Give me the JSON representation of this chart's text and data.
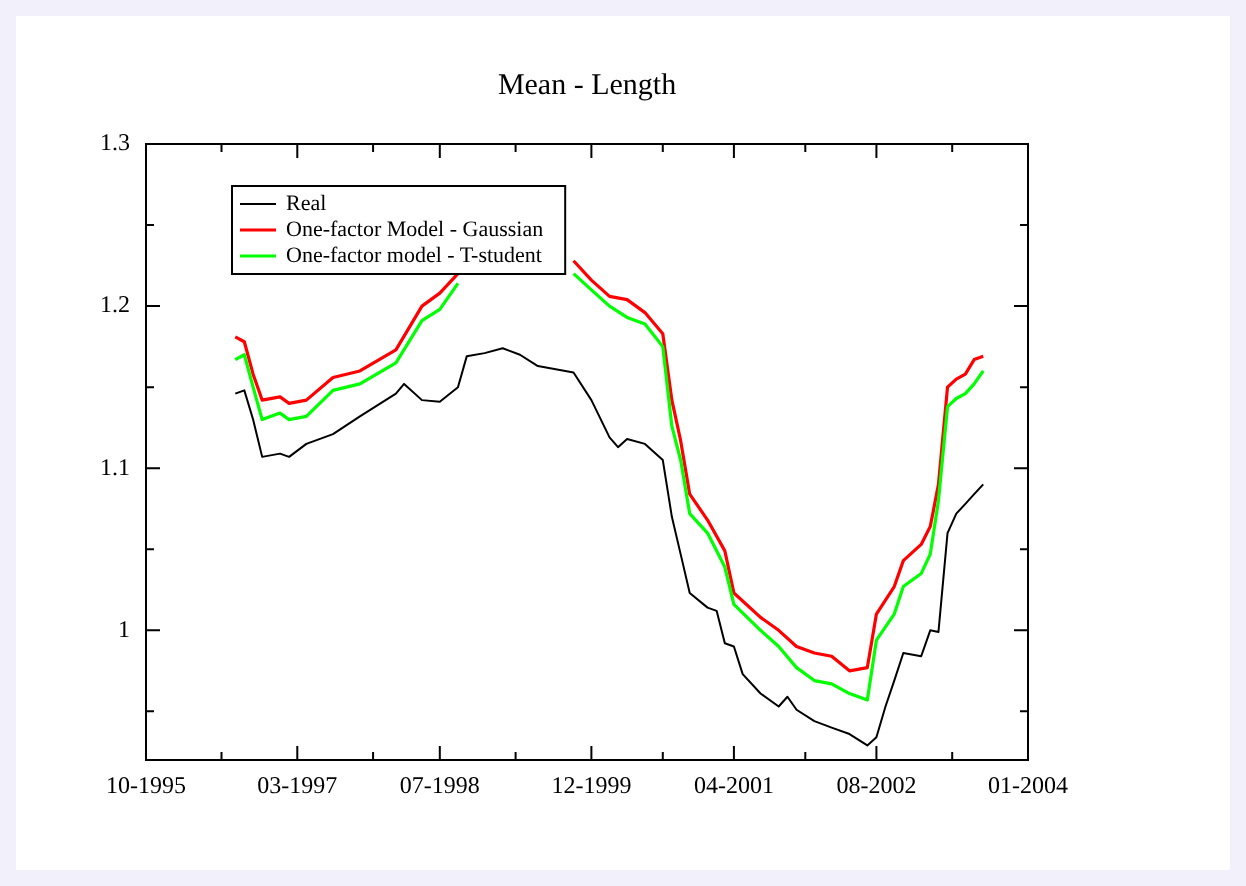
{
  "chart_data": {
    "type": "line",
    "title": "Mean - Length",
    "xlim": [
      "1995-10",
      "2004-01"
    ],
    "xticks": [
      {
        "value": "1995-10",
        "label": "10-1995"
      },
      {
        "value": "1996-06-15",
        "label": null
      },
      {
        "value": "1997-03",
        "label": "03-1997"
      },
      {
        "value": "1997-11-15",
        "label": null
      },
      {
        "value": "1998-07",
        "label": "07-1998"
      },
      {
        "value": "1999-03-17",
        "label": null
      },
      {
        "value": "1999-12",
        "label": "12-1999"
      },
      {
        "value": "2000-08",
        "label": null
      },
      {
        "value": "2001-04",
        "label": "04-2001"
      },
      {
        "value": "2001-12",
        "label": null
      },
      {
        "value": "2002-08",
        "label": "08-2002"
      },
      {
        "value": "2003-04-17",
        "label": null
      },
      {
        "value": "2004-01",
        "label": "01-2004"
      }
    ],
    "ylim": [
      0.92,
      1.3
    ],
    "yticks": [
      {
        "value": 0.95,
        "label": null
      },
      1,
      {
        "value": 1.05,
        "label": null
      },
      1.1,
      {
        "value": 1.15,
        "label": null
      },
      1.2,
      {
        "value": 1.25,
        "label": null
      },
      1.3
    ],
    "grid": false,
    "legend": "top left",
    "marker": "none",
    "line_style": "solid",
    "series": [
      {
        "name": "Real",
        "color": "#000000",
        "x": [
          "1996-08",
          "1996-09",
          "1996-10",
          "1996-11",
          "1997-01",
          "1997-02",
          "1997-04",
          "1997-07",
          "1997-10",
          "1998-02",
          "1998-03",
          "1998-05",
          "1998-07",
          "1998-09",
          "1998-10",
          "1998-12",
          "1999-02",
          "1999-04",
          "1999-06",
          "1999-10",
          "1999-12",
          "2000-02",
          "2000-03",
          "2000-04",
          "2000-06",
          "2000-08",
          "2000-09",
          "2000-10",
          "2000-11",
          "2001-01",
          "2001-02",
          "2001-03",
          "2001-04",
          "2001-05",
          "2001-07",
          "2001-09",
          "2001-10",
          "2001-11",
          "2002-01",
          "2002-03",
          "2002-05",
          "2002-07",
          "2002-08",
          "2002-09",
          "2002-10",
          "2002-11",
          "2003-01",
          "2003-02",
          "2003-03",
          "2003-04",
          "2003-05",
          "2003-06",
          "2003-07",
          "2003-08"
        ],
        "values": [
          1.146,
          1.148,
          1.13,
          1.107,
          1.109,
          1.107,
          1.115,
          1.121,
          1.132,
          1.146,
          1.152,
          1.142,
          1.141,
          1.15,
          1.169,
          1.171,
          1.174,
          1.17,
          1.163,
          1.159,
          1.142,
          1.119,
          1.113,
          1.118,
          1.115,
          1.105,
          1.07,
          1.047,
          1.023,
          1.014,
          1.012,
          0.992,
          0.99,
          0.973,
          0.961,
          0.953,
          0.959,
          0.951,
          0.944,
          0.94,
          0.936,
          0.929,
          0.934,
          0.953,
          0.969,
          0.986,
          0.984,
          1.0,
          0.999,
          1.06,
          1.072,
          1.078,
          1.084,
          1.09
        ]
      },
      {
        "name": "One-factor Model - Gaussian",
        "color": "#ff0000",
        "x": [
          "1996-08",
          "1996-09",
          "1996-10",
          "1996-11",
          "1997-01",
          "1997-02",
          "1997-04",
          "1997-07",
          "1997-10",
          "1998-02",
          "1998-05",
          "1998-07",
          "1998-09",
          "1998-10",
          "1999-09",
          "1999-10",
          "1999-12",
          "2000-02",
          "2000-04",
          "2000-06",
          "2000-08",
          "2000-09",
          "2000-10",
          "2000-11",
          "2001-01",
          "2001-03",
          "2001-04",
          "2001-07",
          "2001-09",
          "2001-11",
          "2002-01",
          "2002-03",
          "2002-05",
          "2002-07",
          "2002-08",
          "2002-10",
          "2002-11",
          "2003-01",
          "2003-02",
          "2003-03",
          "2003-04",
          "2003-05",
          "2003-06",
          "2003-07",
          "2003-08"
        ],
        "values": [
          1.181,
          1.178,
          1.158,
          1.142,
          1.144,
          1.14,
          1.142,
          1.156,
          1.16,
          1.173,
          1.2,
          1.208,
          1.22,
          null,
          null,
          1.228,
          1.216,
          1.206,
          1.204,
          1.196,
          1.183,
          1.142,
          1.117,
          1.084,
          1.068,
          1.049,
          1.023,
          1.008,
          1.0,
          0.99,
          0.986,
          0.984,
          0.975,
          0.977,
          1.01,
          1.027,
          1.043,
          1.053,
          1.064,
          1.09,
          1.15,
          1.155,
          1.158,
          1.167,
          1.169
        ]
      },
      {
        "name": "One-factor model - T-student",
        "color": "#00ff00",
        "x": [
          "1996-08",
          "1996-09",
          "1996-10",
          "1996-11",
          "1997-01",
          "1997-02",
          "1997-04",
          "1997-07",
          "1997-10",
          "1998-02",
          "1998-05",
          "1998-07",
          "1998-09",
          "1998-10",
          "1999-09",
          "1999-10",
          "1999-12",
          "2000-02",
          "2000-04",
          "2000-06",
          "2000-08",
          "2000-09",
          "2000-10",
          "2000-11",
          "2001-01",
          "2001-03",
          "2001-04",
          "2001-07",
          "2001-09",
          "2001-11",
          "2002-01",
          "2002-03",
          "2002-05",
          "2002-07",
          "2002-08",
          "2002-10",
          "2002-11",
          "2003-01",
          "2003-02",
          "2003-03",
          "2003-04",
          "2003-05",
          "2003-06",
          "2003-07",
          "2003-08"
        ],
        "values": [
          1.167,
          1.17,
          1.15,
          1.13,
          1.134,
          1.13,
          1.132,
          1.148,
          1.152,
          1.165,
          1.191,
          1.198,
          1.214,
          null,
          null,
          1.22,
          1.21,
          1.2,
          1.193,
          1.189,
          1.175,
          1.126,
          1.105,
          1.072,
          1.06,
          1.039,
          1.016,
          1.0,
          0.99,
          0.977,
          0.969,
          0.967,
          0.961,
          0.957,
          0.994,
          1.01,
          1.027,
          1.035,
          1.047,
          1.08,
          1.138,
          1.143,
          1.146,
          1.152,
          1.16
        ]
      }
    ]
  }
}
